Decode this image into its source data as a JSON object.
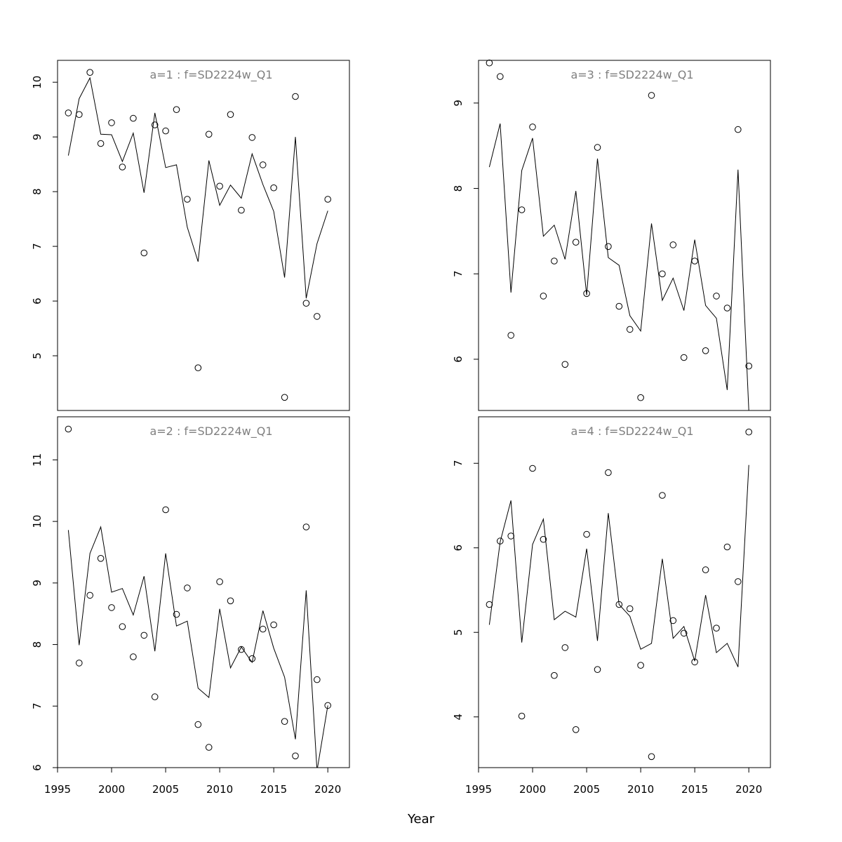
{
  "xlabel": "Year",
  "chart_data": [
    {
      "type": "scatter",
      "title": "a=1  :  f=SD2224w_Q1",
      "xlim": [
        1995,
        2022
      ],
      "ylim": [
        4.0,
        10.4
      ],
      "xticks": [
        1995,
        2000,
        2005,
        2010,
        2015,
        2020
      ],
      "yticks": [
        5,
        6,
        7,
        8,
        9,
        10
      ],
      "x": [
        1996,
        1997,
        1998,
        1999,
        2000,
        2001,
        2002,
        2003,
        2004,
        2005,
        2006,
        2007,
        2008,
        2009,
        2010,
        2011,
        2012,
        2013,
        2014,
        2015,
        2016,
        2017,
        2018,
        2019,
        2020
      ],
      "observed": [
        9.44,
        9.41,
        10.18,
        8.88,
        9.26,
        8.45,
        9.34,
        6.88,
        9.22,
        9.11,
        9.5,
        7.86,
        4.78,
        9.05,
        8.1,
        9.41,
        7.66,
        8.99,
        8.49,
        8.07,
        4.24,
        9.74,
        5.96,
        5.72,
        7.86
      ],
      "fitted": [
        8.66,
        9.7,
        10.08,
        9.05,
        9.04,
        8.55,
        9.07,
        7.98,
        9.44,
        8.44,
        8.49,
        7.35,
        6.72,
        8.57,
        7.75,
        8.12,
        7.88,
        8.69,
        8.13,
        7.64,
        6.43,
        9.0,
        6.05,
        7.05,
        7.65
      ]
    },
    {
      "type": "scatter",
      "title": "a=3  :  f=SD2224w_Q1",
      "xlim": [
        1995,
        2022
      ],
      "ylim": [
        5.4,
        9.5
      ],
      "xticks": [
        1995,
        2000,
        2005,
        2010,
        2015,
        2020
      ],
      "yticks": [
        6,
        7,
        8,
        9
      ],
      "x": [
        1996,
        1997,
        1998,
        1999,
        2000,
        2001,
        2002,
        2003,
        2004,
        2005,
        2006,
        2007,
        2008,
        2009,
        2010,
        2011,
        2012,
        2013,
        2014,
        2015,
        2016,
        2017,
        2018,
        2019,
        2020
      ],
      "observed": [
        9.47,
        9.31,
        6.28,
        7.75,
        8.72,
        6.74,
        7.15,
        5.94,
        7.37,
        6.77,
        8.48,
        7.32,
        6.62,
        6.35,
        5.55,
        9.09,
        7.0,
        7.34,
        6.02,
        7.15,
        6.1,
        6.74,
        6.6,
        8.69,
        5.92
      ],
      "fitted": [
        8.25,
        8.76,
        6.78,
        8.21,
        8.59,
        7.44,
        7.57,
        7.17,
        7.97,
        6.75,
        8.35,
        7.19,
        7.1,
        6.51,
        6.33,
        7.59,
        6.69,
        6.95,
        6.57,
        7.4,
        6.63,
        6.48,
        5.64,
        8.22,
        5.4
      ]
    },
    {
      "type": "scatter",
      "title": "a=2  :  f=SD2224w_Q1",
      "xlim": [
        1995,
        2022
      ],
      "ylim": [
        6.0,
        11.7
      ],
      "xticks": [
        1995,
        2000,
        2005,
        2010,
        2015,
        2020
      ],
      "yticks": [
        6,
        7,
        8,
        9,
        10,
        11
      ],
      "x": [
        1996,
        1997,
        1998,
        1999,
        2000,
        2001,
        2002,
        2003,
        2004,
        2005,
        2006,
        2007,
        2008,
        2009,
        2010,
        2011,
        2012,
        2013,
        2014,
        2015,
        2016,
        2017,
        2018,
        2019,
        2020
      ],
      "observed": [
        11.5,
        7.7,
        8.8,
        9.4,
        8.6,
        8.29,
        7.8,
        8.15,
        7.15,
        10.19,
        8.49,
        8.92,
        6.7,
        6.33,
        9.02,
        8.71,
        7.92,
        7.77,
        8.25,
        8.32,
        6.75,
        6.19,
        9.91,
        7.43,
        7.01
      ],
      "fitted": [
        9.86,
        7.99,
        9.48,
        9.91,
        8.85,
        8.91,
        8.48,
        9.11,
        7.89,
        9.48,
        8.3,
        8.38,
        7.29,
        7.14,
        8.58,
        7.62,
        7.96,
        7.71,
        8.55,
        7.94,
        7.47,
        6.46,
        8.88,
        5.95,
        7.01
      ]
    },
    {
      "type": "scatter",
      "title": "a=4  :  f=SD2224w_Q1",
      "xlim": [
        1995,
        2022
      ],
      "ylim": [
        3.4,
        7.55
      ],
      "xticks": [
        1995,
        2000,
        2005,
        2010,
        2015,
        2020
      ],
      "yticks": [
        4,
        5,
        6,
        7
      ],
      "x": [
        1996,
        1997,
        1998,
        1999,
        2000,
        2001,
        2002,
        2003,
        2004,
        2005,
        2006,
        2007,
        2008,
        2009,
        2010,
        2011,
        2012,
        2013,
        2014,
        2015,
        2016,
        2017,
        2018,
        2019,
        2020
      ],
      "observed": [
        5.33,
        6.08,
        6.14,
        4.01,
        6.94,
        6.1,
        4.49,
        4.82,
        3.85,
        6.16,
        4.56,
        6.89,
        5.33,
        5.28,
        4.61,
        3.53,
        6.62,
        5.14,
        4.99,
        4.65,
        5.74,
        5.05,
        6.01,
        5.6,
        7.37
      ],
      "fitted": [
        5.09,
        6.07,
        6.56,
        4.88,
        6.04,
        6.34,
        5.15,
        5.25,
        5.18,
        5.99,
        4.9,
        6.41,
        5.33,
        5.19,
        4.8,
        4.87,
        5.87,
        4.93,
        5.07,
        4.66,
        5.44,
        4.76,
        4.87,
        4.59,
        6.98
      ]
    }
  ]
}
